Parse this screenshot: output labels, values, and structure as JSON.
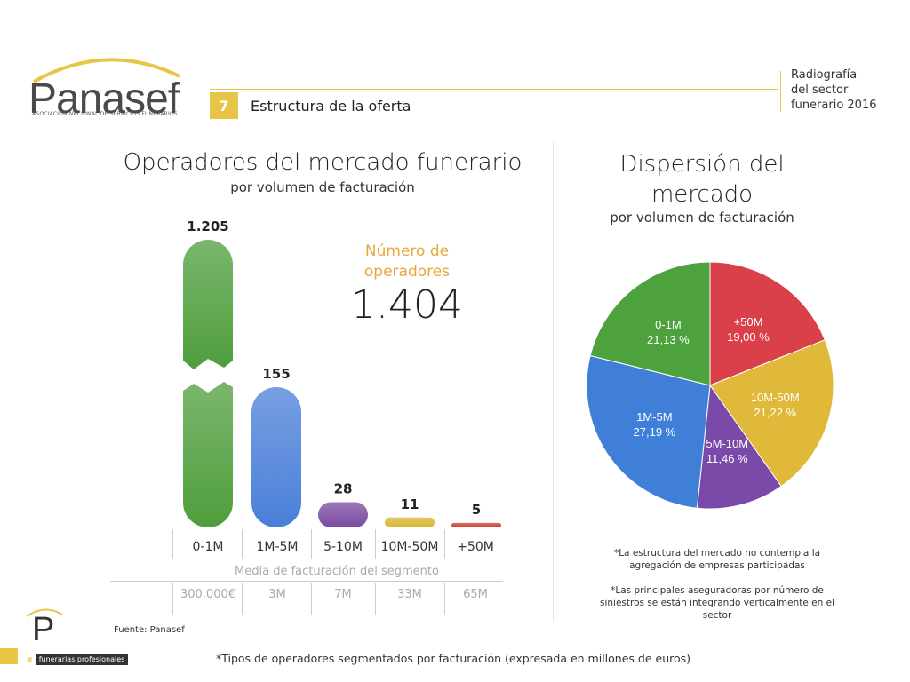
{
  "logo": {
    "name": "Panasef",
    "subtitle": "ASOCIACIÓN NACIONAL DE SERVICIOS FUNERARIOS",
    "arc_color": "#e8c547"
  },
  "header": {
    "section_number": "7",
    "section_title": "Estructura de la oferta",
    "report_lines": [
      "Radiografía",
      "del sector",
      "funerario 2016"
    ]
  },
  "left_panel": {
    "title": "Operadores del mercado funerario",
    "subtitle": "por volumen de facturación",
    "total_label_lines": [
      "Número de",
      "operadores"
    ],
    "total_value": "1.404",
    "avg_caption": "Media de facturación del segmento",
    "averages": [
      "300.000€",
      "3M",
      "7M",
      "33M",
      "65M"
    ]
  },
  "right_panel": {
    "title_lines": [
      "Dispersión del",
      "mercado"
    ],
    "subtitle": "por volumen de facturación",
    "note1": "*La estructura del mercado no contempla la agregación de empresas participadas",
    "note2": "*Las principales aseguradoras por número de siniestros se están integrando verticalmente en el sector"
  },
  "footer": {
    "source": "Fuente: Panasef",
    "footnote": "*Tipos de operadores segmentados por facturación (expresada en millones de euros)",
    "brand_letter": "P",
    "tag_symbol": "#",
    "tag": "funerarias profesionales"
  },
  "chart_data": [
    {
      "type": "bar",
      "title": "Operadores del mercado funerario",
      "subtitle": "por volumen de facturación",
      "categories": [
        "0-1M",
        "1M-5M",
        "5-10M",
        "10M-50M",
        "+50M"
      ],
      "values": [
        1205,
        155,
        28,
        11,
        5
      ],
      "value_labels": [
        "1.205",
        "155",
        "28",
        "11",
        "5"
      ],
      "colors": [
        "#4e9e3c",
        "#4a7fd8",
        "#7b4aa0",
        "#d9b534",
        "#cc3d2c"
      ],
      "axis_break": true
    },
    {
      "type": "pie",
      "title": "Dispersión del mercado",
      "subtitle": "por volumen de facturación",
      "slices": [
        {
          "label": "+50M",
          "value_text": "19,00 %",
          "value": 19.0,
          "color": "#d9404a"
        },
        {
          "label": "10M-50M",
          "value_text": "21,22 %",
          "value": 21.22,
          "color": "#e0b83a"
        },
        {
          "label": "5M-10M",
          "value_text": "11,46 %",
          "value": 11.46,
          "color": "#7a4aa8"
        },
        {
          "label": "1M-5M",
          "value_text": "27,19 %",
          "value": 27.19,
          "color": "#3f7fd8"
        },
        {
          "label": "0-1M",
          "value_text": "21,13 %",
          "value": 21.13,
          "color": "#4ea23e"
        }
      ]
    }
  ]
}
